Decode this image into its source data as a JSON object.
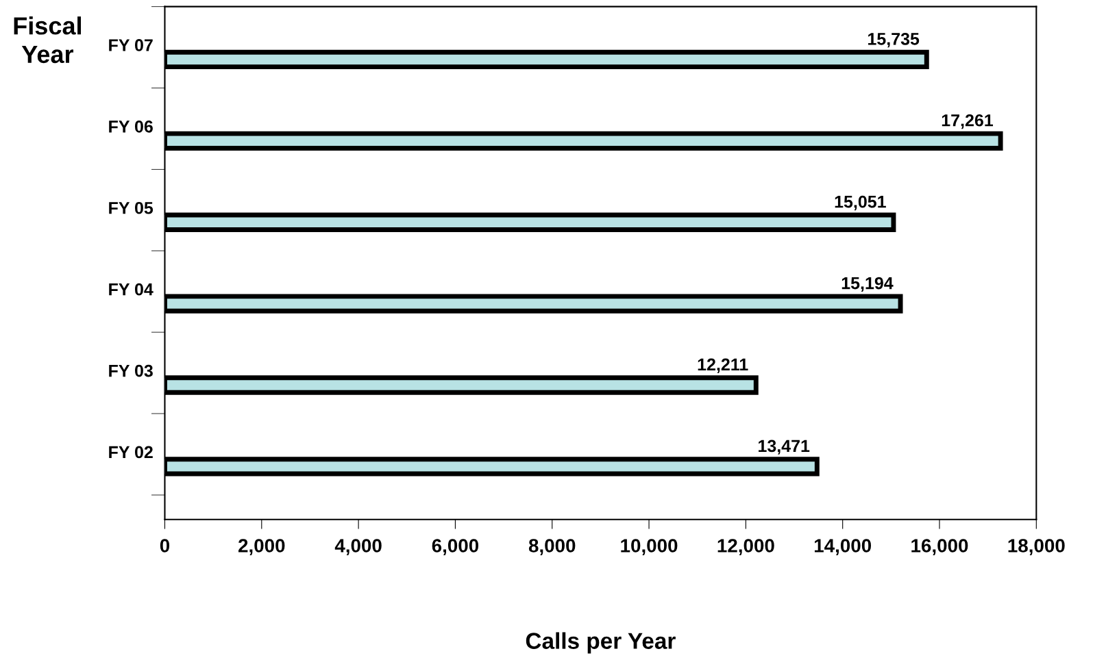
{
  "chart_data": {
    "type": "bar",
    "orientation": "horizontal",
    "ylabel": "Fiscal\nYear",
    "xlabel": "Calls per Year",
    "categories": [
      "FY 07",
      "FY 06",
      "FY 05",
      "FY 04",
      "FY 03",
      "FY 02"
    ],
    "values": [
      15735,
      17261,
      15051,
      15194,
      12211,
      13471
    ],
    "value_labels": [
      "15,735",
      "17,261",
      "15,051",
      "15,194",
      "12,211",
      "13,471"
    ],
    "color": "#b8e2e4",
    "xlim": [
      0,
      18000
    ],
    "xticks": [
      0,
      {
        "value": 2000,
        "label": "2,000"
      },
      {
        "value": 4000,
        "label": "4,000"
      },
      {
        "value": 6000,
        "label": "6,000"
      },
      {
        "value": 8000,
        "label": "8,000"
      },
      {
        "value": 10000,
        "label": "10,000"
      },
      {
        "value": 12000,
        "label": "12,000"
      },
      {
        "value": 14000,
        "label": "14,000"
      },
      {
        "value": 16000,
        "label": "16,000"
      },
      {
        "value": 18000,
        "label": "18,000"
      }
    ],
    "grid": false,
    "legend": false
  }
}
